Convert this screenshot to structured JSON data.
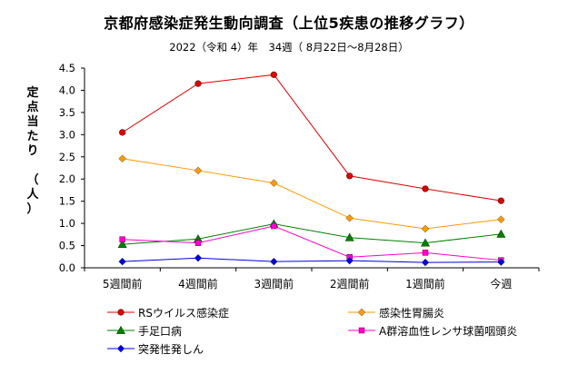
{
  "chart_data": {
    "type": "line",
    "title": "京都府感染症発生動向調査（上位5疾患の推移グラフ）",
    "subtitle": "2022（令和 4）年　34週（ 8月22日～8月28日）",
    "ylabel_chars": [
      "定",
      "点",
      "当",
      "た",
      "り",
      "",
      "（",
      "人",
      "）"
    ],
    "categories": [
      "5週間前",
      "4週間前",
      "3週間前",
      "2週間前",
      "1週間前",
      "今週"
    ],
    "yticks": [
      "0.0",
      "0.5",
      "1.0",
      "1.5",
      "2.0",
      "2.5",
      "3.0",
      "3.5",
      "4.0",
      "4.5"
    ],
    "ylim": [
      0,
      4.5
    ],
    "grid": false,
    "legend_position": "bottom",
    "series": [
      {
        "name": "RSウイルス感染症",
        "color": "#e00000",
        "marker": "circle",
        "values": [
          3.05,
          4.15,
          4.35,
          2.07,
          1.78,
          1.51
        ]
      },
      {
        "name": "感染性胃腸炎",
        "color": "#ff9900",
        "marker": "diamond",
        "values": [
          2.46,
          2.19,
          1.91,
          1.12,
          0.88,
          1.09
        ]
      },
      {
        "name": "手足口病",
        "color": "#008000",
        "marker": "triangle",
        "values": [
          0.53,
          0.65,
          0.99,
          0.68,
          0.56,
          0.76
        ]
      },
      {
        "name": "A群溶血性レンサ球菌咽頭炎",
        "color": "#ff00cc",
        "marker": "square",
        "values": [
          0.64,
          0.56,
          0.94,
          0.24,
          0.34,
          0.17
        ]
      },
      {
        "name": "突発性発しん",
        "color": "#0000dd",
        "marker": "diamond",
        "values": [
          0.14,
          0.22,
          0.14,
          0.16,
          0.12,
          0.13
        ]
      }
    ]
  }
}
